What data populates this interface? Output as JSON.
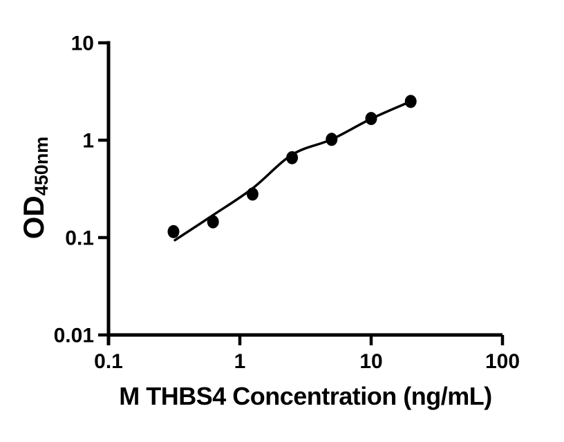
{
  "chart_data": {
    "type": "scatter",
    "title": "",
    "xlabel": "M THBS4 Concentration (ng/mL)",
    "ylabel_main": "OD",
    "ylabel_sub": "450nm",
    "x_scale": "log",
    "y_scale": "log",
    "xlim": [
      0.1,
      100
    ],
    "ylim": [
      0.01,
      10
    ],
    "grid": false,
    "legend": null,
    "x_ticks": [
      [
        0.1,
        "0.1"
      ],
      [
        1,
        "1"
      ],
      [
        10,
        "10"
      ],
      [
        100,
        "100"
      ]
    ],
    "y_ticks": [
      [
        10,
        "10"
      ],
      [
        1,
        "1"
      ],
      [
        0.1,
        "0.1"
      ],
      [
        0.01,
        "0.01"
      ]
    ],
    "series": [
      {
        "name": "standard-points",
        "marker": "filled-circle",
        "color": "#000000",
        "points": [
          [
            0.3125,
            0.115
          ],
          [
            0.625,
            0.145
          ],
          [
            1.25,
            0.28
          ],
          [
            2.5,
            0.66
          ],
          [
            5,
            1.02
          ],
          [
            10,
            1.67
          ],
          [
            20,
            2.5
          ]
        ]
      }
    ],
    "fit_curve": {
      "name": "4pl-fit-line",
      "color": "#000000",
      "points": [
        [
          0.32,
          0.094
        ],
        [
          0.625,
          0.17
        ],
        [
          1.25,
          0.32
        ],
        [
          2.5,
          0.71
        ],
        [
          5,
          1.02
        ],
        [
          10,
          1.66
        ],
        [
          20,
          2.5
        ]
      ]
    },
    "axis_color": "#000000",
    "background": "#ffffff"
  }
}
